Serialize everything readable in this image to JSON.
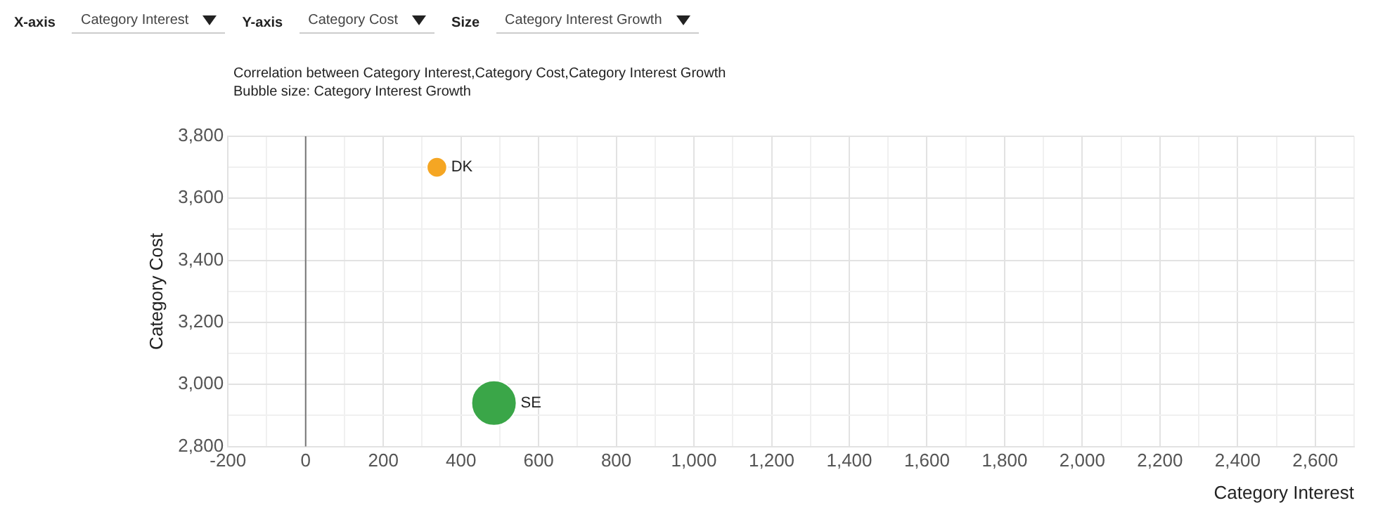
{
  "chart_data": {
    "type": "bubble",
    "title": "Correlation between Category Interest,Category Cost,Category Interest Growth",
    "subtitle": "Bubble size: Category Interest Growth",
    "xlabel": "Category Interest",
    "ylabel": "Category Cost",
    "annotations": [
      "X-axis",
      "Category Interest",
      "Y-axis",
      "Category Cost",
      "Size",
      "Category Interest Growth"
    ],
    "series": [
      {
        "name": "DK",
        "color": "#f5a623",
        "x": [
          338
        ],
        "values": [
          3700
        ],
        "sizes": [
          0.2
        ]
      },
      {
        "name": "SE",
        "color": "#3aa648",
        "x": [
          485
        ],
        "values": [
          2940
        ],
        "sizes": [
          1
        ]
      }
    ],
    "xlim": [
      -200,
      2700
    ],
    "xticks": [
      -200,
      {
        "value": -100,
        "label": null
      },
      0,
      {
        "value": 100,
        "label": null
      },
      200,
      {
        "value": 300,
        "label": null
      },
      400,
      {
        "value": 500,
        "label": null
      },
      600,
      {
        "value": 700,
        "label": null
      },
      800,
      {
        "value": 900,
        "label": null
      },
      {
        "value": 1000,
        "label": "1,000"
      },
      {
        "value": 1100,
        "label": null
      },
      {
        "value": 1200,
        "label": "1,200"
      },
      {
        "value": 1300,
        "label": null
      },
      {
        "value": 1400,
        "label": "1,400"
      },
      {
        "value": 1500,
        "label": null
      },
      {
        "value": 1600,
        "label": "1,600"
      },
      {
        "value": 1700,
        "label": null
      },
      {
        "value": 1800,
        "label": "1,800"
      },
      {
        "value": 1900,
        "label": null
      },
      {
        "value": 2000,
        "label": "2,000"
      },
      {
        "value": 2100,
        "label": null
      },
      {
        "value": 2200,
        "label": "2,200"
      },
      {
        "value": 2300,
        "label": null
      },
      {
        "value": 2400,
        "label": "2,400"
      },
      {
        "value": 2500,
        "label": null
      },
      {
        "value": 2600,
        "label": "2,600"
      },
      {
        "value": 2700,
        "label": null
      }
    ],
    "ylim": [
      2800,
      3800
    ],
    "yticks": [
      {
        "value": 2800,
        "label": "2,800"
      },
      {
        "value": 2900,
        "label": null
      },
      {
        "value": 3000,
        "label": "3,000"
      },
      {
        "value": 3100,
        "label": null
      },
      {
        "value": 3200,
        "label": "3,200"
      },
      {
        "value": 3300,
        "label": null
      },
      {
        "value": 3400,
        "label": "3,400"
      },
      {
        "value": 3500,
        "label": null
      },
      {
        "value": 3600,
        "label": "3,600"
      },
      {
        "value": 3700,
        "label": null
      },
      {
        "value": 3800,
        "label": "3,800"
      }
    ],
    "ref_lines": [
      {
        "axis": "x",
        "value": 0,
        "color": "#777777"
      }
    ],
    "grid": true,
    "legend": false
  }
}
